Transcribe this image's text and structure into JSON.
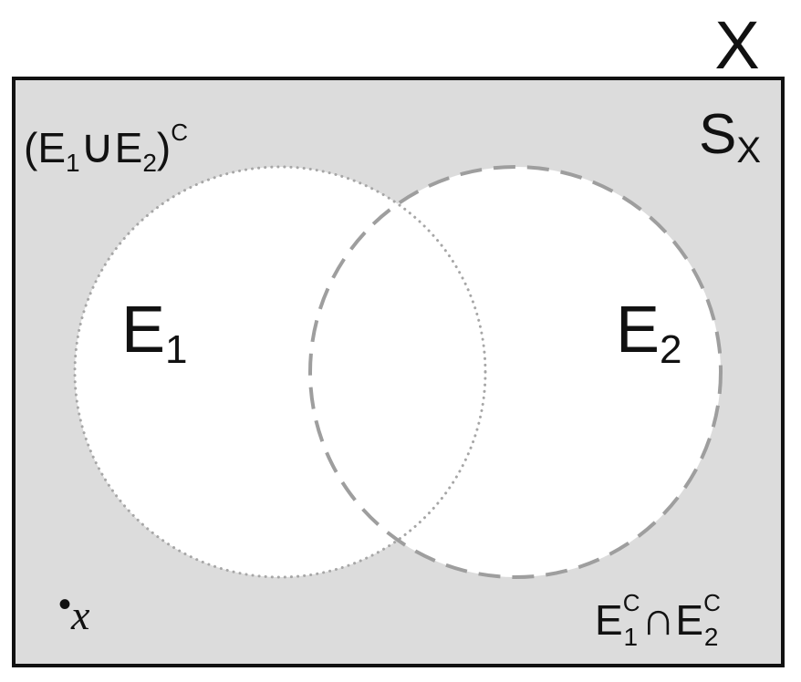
{
  "diagram": {
    "random_variable": "X",
    "sample_space": {
      "base": "S",
      "sub": "X"
    },
    "complement_of_union": {
      "open": "(",
      "e1_base": "E",
      "e1_sub": "1",
      "op": "∪",
      "e2_base": "E",
      "e2_sub": "2",
      "close": ")",
      "sup": "C"
    },
    "event_1": {
      "base": "E",
      "sub": "1"
    },
    "event_2": {
      "base": "E",
      "sub": "2"
    },
    "intersection_of_complements": {
      "e1_base": "E",
      "e1_sub": "1",
      "e1_sup": "C",
      "op": "∩",
      "e2_base": "E",
      "e2_sub": "2",
      "e2_sup": "C"
    },
    "outcome_point": {
      "bullet": "•",
      "label": "x"
    },
    "colors": {
      "sample_space_fill": "#dcdcdc",
      "border": "#111111",
      "event_fill": "#ffffff",
      "event_1_outline": "#a6a6a6",
      "event_2_outline": "#9e9e9e"
    }
  }
}
